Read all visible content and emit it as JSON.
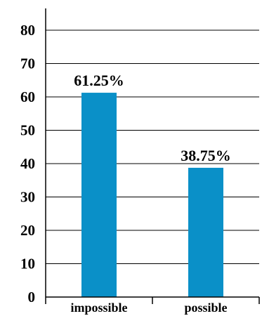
{
  "chart_data": {
    "type": "bar",
    "title": "",
    "xlabel": "",
    "ylabel": "",
    "categories": [
      "impossible",
      "possible"
    ],
    "values": [
      61.25,
      38.75
    ],
    "data_labels": [
      "61.25%",
      "38.75%"
    ],
    "ylim": [
      0,
      80
    ],
    "yticks": [
      "0",
      "10",
      "20",
      "30",
      "40",
      "50",
      "60",
      "70",
      "80"
    ],
    "grid": "horizontal",
    "legend": "none",
    "bar_color": "#0a90c8"
  }
}
